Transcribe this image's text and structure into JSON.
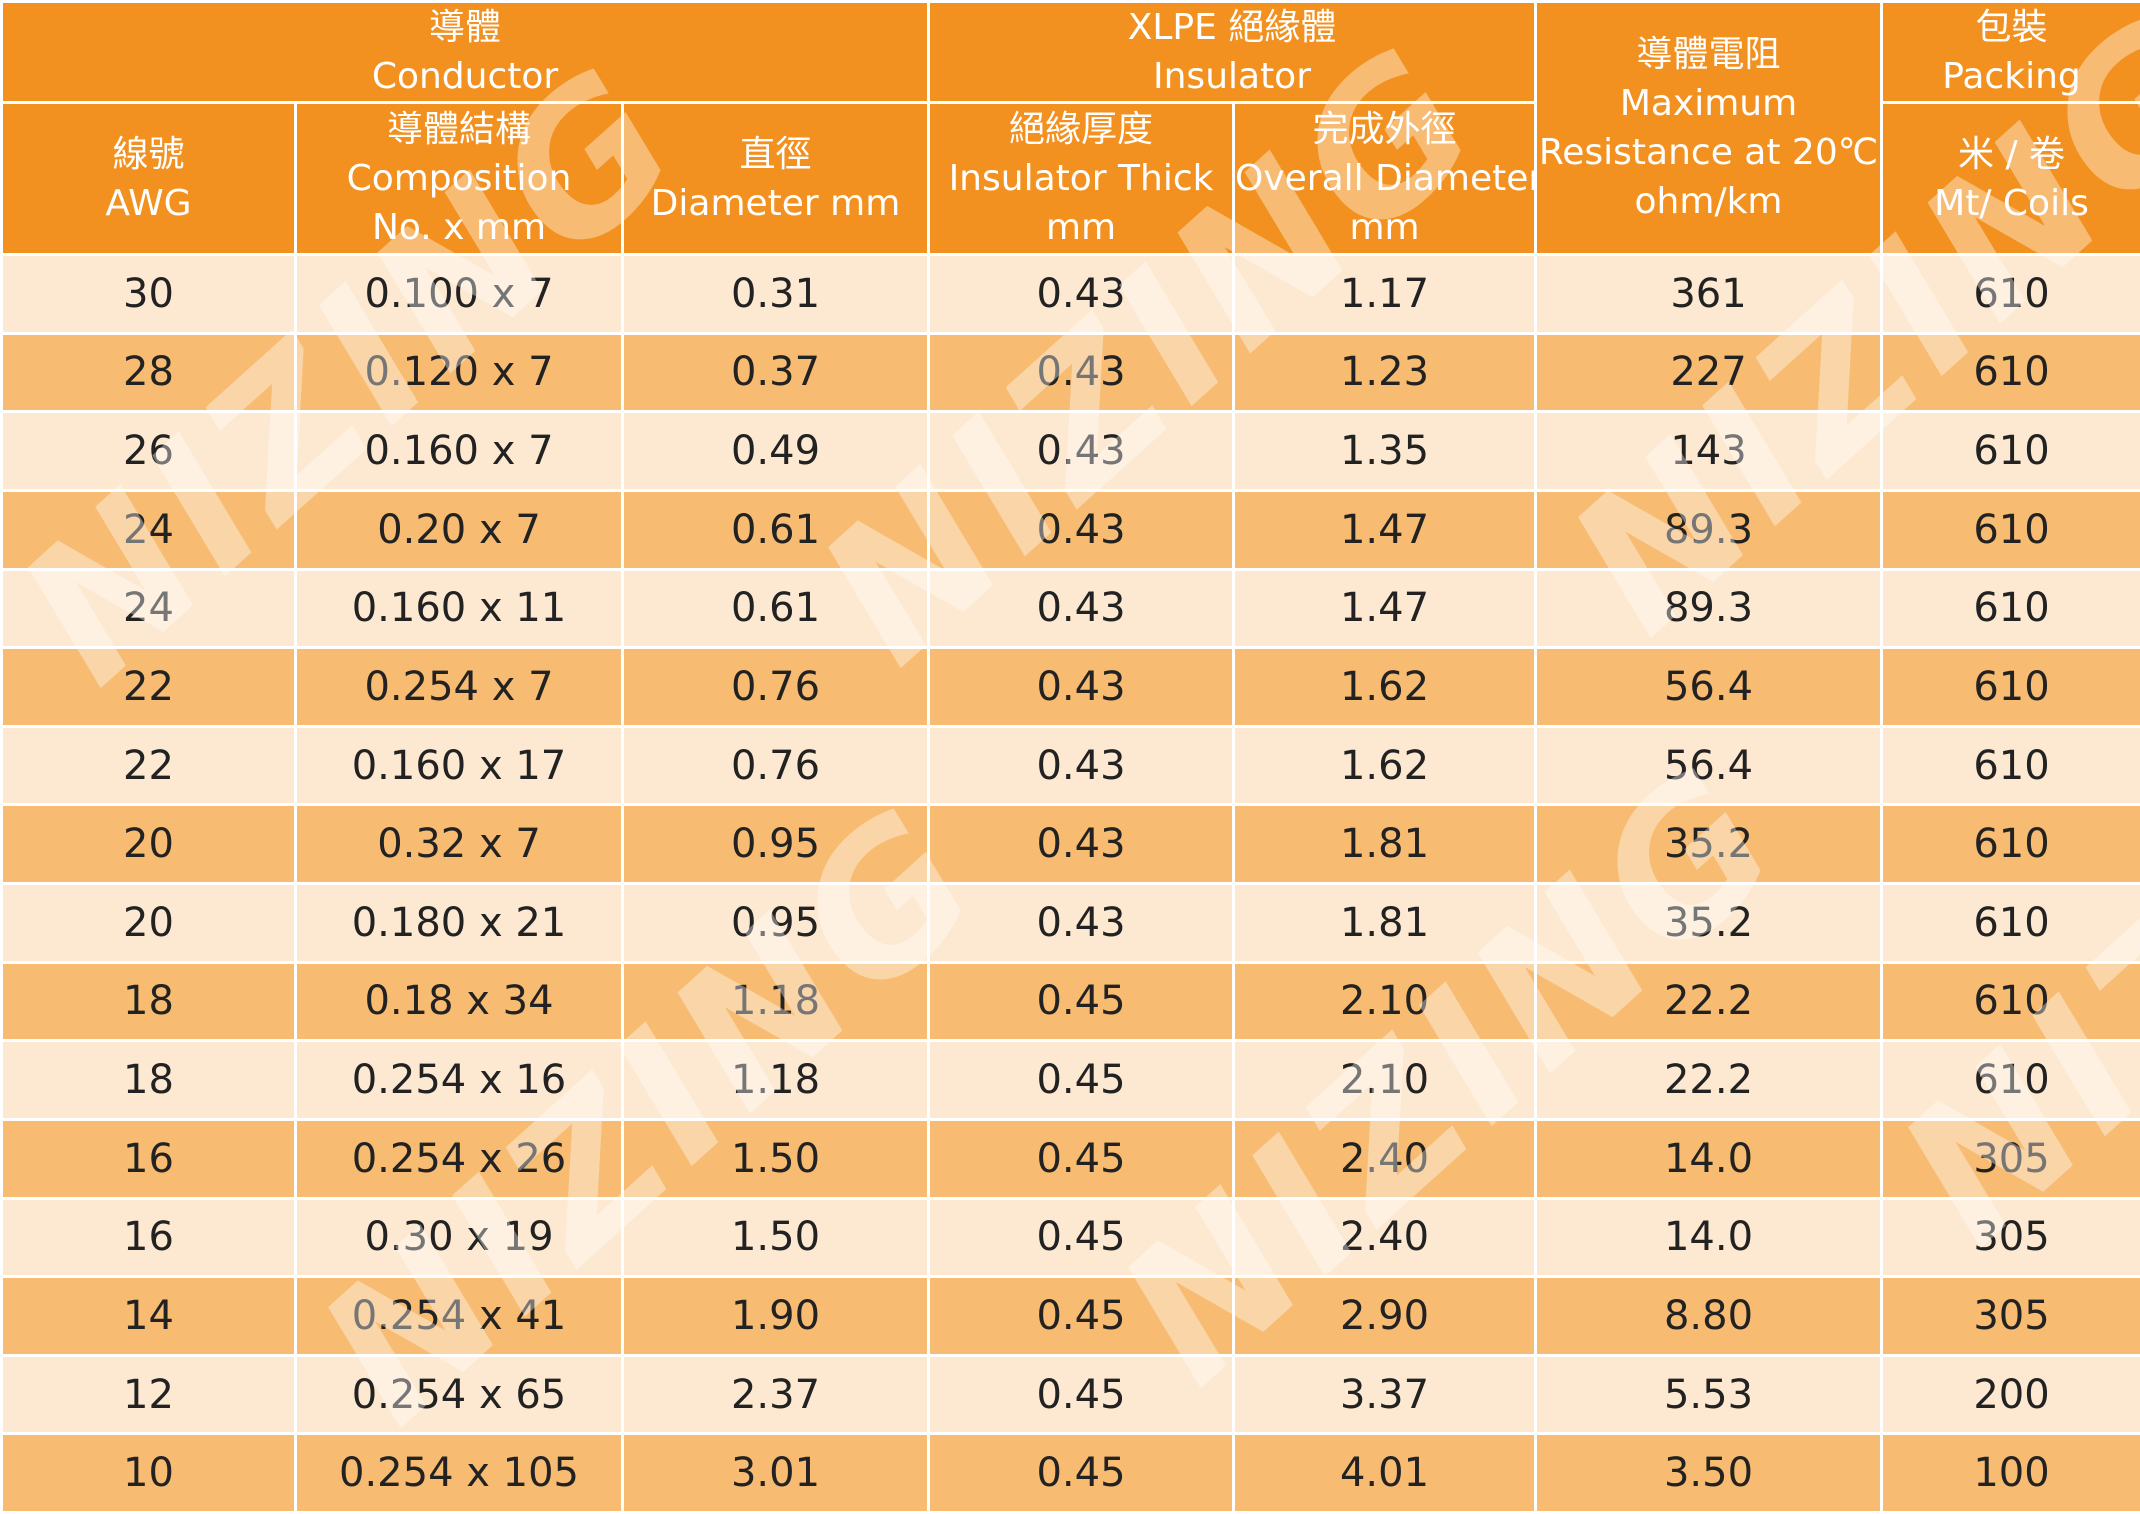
{
  "header": {
    "conductor_group": {
      "zh": "導體",
      "en": "Conductor"
    },
    "insulator_group": {
      "zh": "XLPE 絕緣體",
      "en": "Insulator"
    },
    "resistance": {
      "zh": "導體電阻",
      "en1": "Maximum",
      "en2": "Resistance at 20℃",
      "unit": "ohm/km"
    },
    "packing": {
      "zh": "包裝",
      "en": "Packing",
      "sub_zh": "米 / 卷",
      "sub_en": "Mt/ Coils"
    },
    "awg": {
      "zh": "線號",
      "en": "AWG"
    },
    "composition": {
      "zh": "導體結構",
      "en": "Composition",
      "unit": "No. x mm"
    },
    "diameter": {
      "zh": "直徑",
      "en": "Diameter mm"
    },
    "insulator_thick": {
      "zh": "絕緣厚度",
      "en": "Insulator Thick",
      "unit": "mm"
    },
    "overall_diameter": {
      "zh": "完成外徑",
      "en": "Overall Diameter",
      "unit": "mm"
    }
  },
  "rows": [
    {
      "awg": "30",
      "composition": "0.100 x 7",
      "diameter": "0.31",
      "thick": "0.43",
      "overall": "1.17",
      "resistance": "361",
      "packing": "610"
    },
    {
      "awg": "28",
      "composition": "0.120 x 7",
      "diameter": "0.37",
      "thick": "0.43",
      "overall": "1.23",
      "resistance": "227",
      "packing": "610"
    },
    {
      "awg": "26",
      "composition": "0.160 x 7",
      "diameter": "0.49",
      "thick": "0.43",
      "overall": "1.35",
      "resistance": "143",
      "packing": "610"
    },
    {
      "awg": "24",
      "composition": "0.20 x 7",
      "diameter": "0.61",
      "thick": "0.43",
      "overall": "1.47",
      "resistance": "89.3",
      "packing": "610"
    },
    {
      "awg": "24",
      "composition": "0.160 x 11",
      "diameter": "0.61",
      "thick": "0.43",
      "overall": "1.47",
      "resistance": "89.3",
      "packing": "610"
    },
    {
      "awg": "22",
      "composition": "0.254 x 7",
      "diameter": "0.76",
      "thick": "0.43",
      "overall": "1.62",
      "resistance": "56.4",
      "packing": "610"
    },
    {
      "awg": "22",
      "composition": "0.160 x 17",
      "diameter": "0.76",
      "thick": "0.43",
      "overall": "1.62",
      "resistance": "56.4",
      "packing": "610"
    },
    {
      "awg": "20",
      "composition": "0.32 x 7",
      "diameter": "0.95",
      "thick": "0.43",
      "overall": "1.81",
      "resistance": "35.2",
      "packing": "610"
    },
    {
      "awg": "20",
      "composition": "0.180 x 21",
      "diameter": "0.95",
      "thick": "0.43",
      "overall": "1.81",
      "resistance": "35.2",
      "packing": "610"
    },
    {
      "awg": "18",
      "composition": "0.18 x 34",
      "diameter": "1.18",
      "thick": "0.45",
      "overall": "2.10",
      "resistance": "22.2",
      "packing": "610"
    },
    {
      "awg": "18",
      "composition": "0.254 x 16",
      "diameter": "1.18",
      "thick": "0.45",
      "overall": "2.10",
      "resistance": "22.2",
      "packing": "610"
    },
    {
      "awg": "16",
      "composition": "0.254 x 26",
      "diameter": "1.50",
      "thick": "0.45",
      "overall": "2.40",
      "resistance": "14.0",
      "packing": "305"
    },
    {
      "awg": "16",
      "composition": "0.30 x 19",
      "diameter": "1.50",
      "thick": "0.45",
      "overall": "2.40",
      "resistance": "14.0",
      "packing": "305"
    },
    {
      "awg": "14",
      "composition": "0.254 x 41",
      "diameter": "1.90",
      "thick": "0.45",
      "overall": "2.90",
      "resistance": "8.80",
      "packing": "305"
    },
    {
      "awg": "12",
      "composition": "0.254 x 65",
      "diameter": "2.37",
      "thick": "0.45",
      "overall": "3.37",
      "resistance": "5.53",
      "packing": "200"
    },
    {
      "awg": "10",
      "composition": "0.254 x 105",
      "diameter": "3.01",
      "thick": "0.45",
      "overall": "4.01",
      "resistance": "3.50",
      "packing": "100"
    }
  ],
  "watermark": "NIZING",
  "colors": {
    "header": "#f29120",
    "row_light": "#fde9d1",
    "row_dark": "#f7bb72",
    "header_text": "#ffffff",
    "body_text": "#222222"
  }
}
